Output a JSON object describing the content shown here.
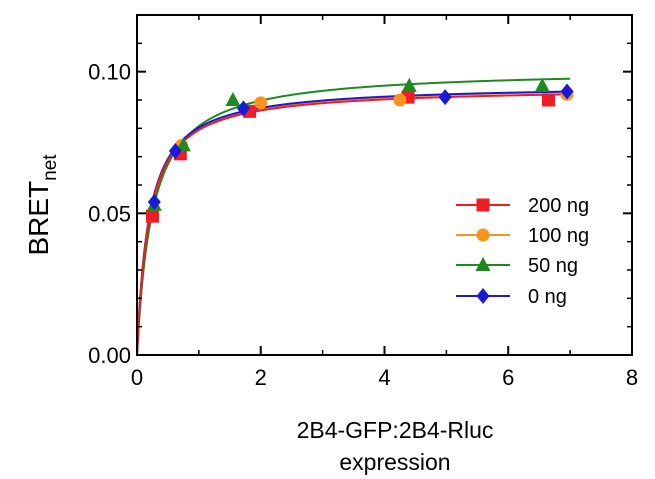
{
  "chart_data": {
    "type": "scatter",
    "xlabel_line1": "2B4-GFP:2B4-Rluc",
    "xlabel_line2": "expression",
    "ylabel_main": "BRET",
    "ylabel_sub": "net",
    "xlim": [
      0,
      8
    ],
    "ylim": [
      0,
      0.12
    ],
    "x_ticks": [
      0,
      2,
      4,
      6,
      8
    ],
    "x_tick_labels": [
      "0",
      "2",
      "4",
      "6",
      "8"
    ],
    "y_ticks": [
      0,
      0.05,
      0.1
    ],
    "y_tick_labels": [
      "0.00",
      "0.05",
      "0.10"
    ],
    "grid": false,
    "legend_position": "right-middle",
    "series": [
      {
        "name": "200 ng",
        "color": "#ee1c24",
        "marker": "square",
        "x": [
          0.25,
          0.7,
          1.82,
          4.38,
          6.65
        ],
        "y": [
          0.049,
          0.071,
          0.086,
          0.091,
          0.09
        ],
        "fit": {
          "bmax": 0.0945,
          "kd": 0.19
        }
      },
      {
        "name": "100 ng",
        "color": "#f7941d",
        "marker": "circle",
        "x": [
          0.72,
          2.0,
          4.25,
          6.95
        ],
        "y": [
          0.074,
          0.089,
          0.09,
          0.092
        ],
        "fit": {
          "bmax": 0.0955,
          "kd": 0.2
        }
      },
      {
        "name": "50 ng",
        "color": "#1e8a1e",
        "marker": "triangle",
        "x": [
          0.28,
          0.75,
          1.55,
          4.4,
          6.55
        ],
        "y": [
          0.053,
          0.074,
          0.09,
          0.095,
          0.095
        ],
        "fit": {
          "bmax": 0.101,
          "kd": 0.25
        }
      },
      {
        "name": "0 ng",
        "color": "#1a1ad6",
        "marker": "diamond",
        "x": [
          0.28,
          0.62,
          1.72,
          4.98,
          6.95
        ],
        "y": [
          0.054,
          0.072,
          0.087,
          0.091,
          0.093
        ],
        "fit": {
          "bmax": 0.0955,
          "kd": 0.19
        }
      }
    ]
  }
}
